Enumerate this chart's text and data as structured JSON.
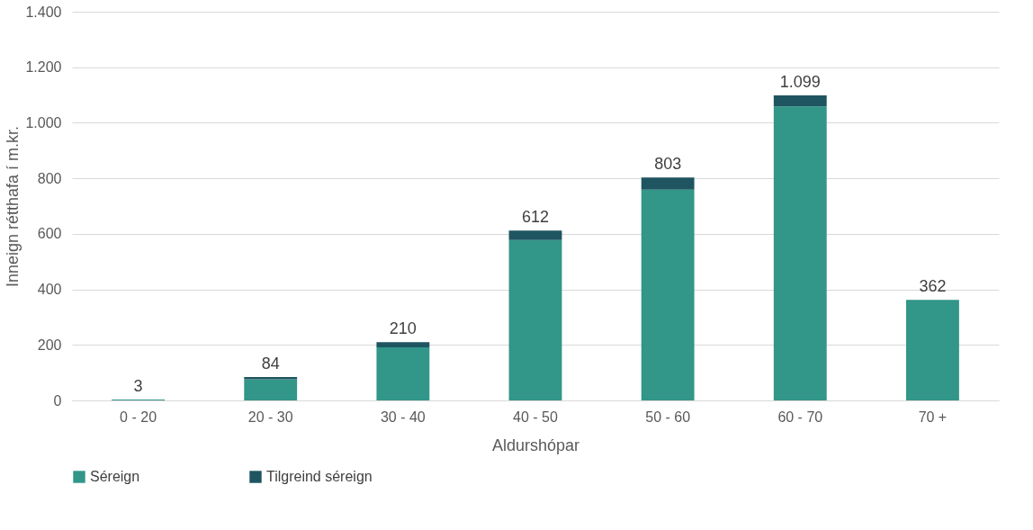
{
  "chart_data": {
    "type": "bar",
    "stacked": true,
    "xlabel": "Aldurshópar",
    "ylabel": "Inneign rétthafa í m.kr.",
    "categories": [
      "0 - 20",
      "20 - 30",
      "30 - 40",
      "40 - 50",
      "50 - 60",
      "60 - 70",
      "70 +"
    ],
    "series": [
      {
        "name": "Séreign",
        "color": "#329688",
        "values": [
          3,
          76,
          191,
          578,
          759,
          1059,
          362
        ]
      },
      {
        "name": "Tilgreind séreign",
        "color": "#1e5560",
        "values": [
          0,
          8,
          19,
          34,
          44,
          40,
          0
        ]
      }
    ],
    "totals": [
      "3",
      "84",
      "210",
      "612",
      "803",
      "1.099",
      "362"
    ],
    "ylim": [
      0,
      1400
    ],
    "yticks": [
      0,
      200,
      400,
      600,
      800,
      {
        "value": 1000,
        "label": "1.000"
      },
      {
        "value": 1200,
        "label": "1.200"
      },
      {
        "value": 1400,
        "label": "1.400"
      }
    ],
    "grid": "y",
    "legend": "bottom"
  }
}
